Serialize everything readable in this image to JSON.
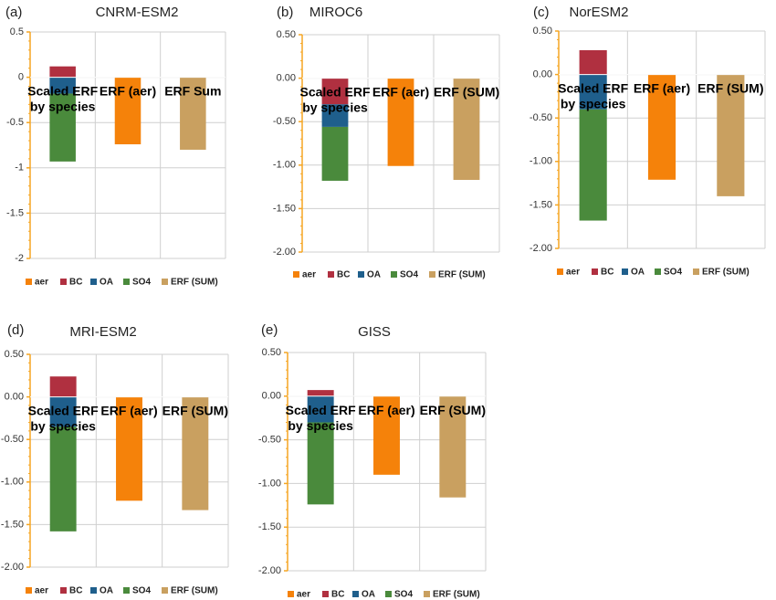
{
  "colors": {
    "aer": "#F5820A",
    "BC": "#B03040",
    "OA": "#1F5F8C",
    "SO4": "#4A8A3C",
    "ERF_SUM": "#C9A060",
    "axis": "#F5A623",
    "grid": "#CFCFCF"
  },
  "chart_data": [
    {
      "type": "bar",
      "panel": "(a)",
      "title": "CNRM-ESM2",
      "categories": [
        "Scaled ERF\nby species",
        "ERF (aer)",
        "ERF Sum"
      ],
      "ylim": [
        -2,
        0.5
      ],
      "yticks": [
        "0.5",
        "0",
        "-0.5",
        "-1",
        "-1.5",
        "-2"
      ],
      "stack": {
        "BC": [
          0,
          0.12
        ],
        "OA": [
          -0.18,
          0
        ],
        "SO4": [
          -0.93,
          -0.18
        ]
      },
      "values": {
        "ERF (aer)": -0.74,
        "ERF Sum": -0.8
      },
      "legend": [
        "aer",
        "BC",
        "OA",
        "SO4",
        "ERF (SUM)"
      ]
    },
    {
      "type": "bar",
      "panel": "(b)",
      "title": "MIROC6",
      "categories": [
        "Scaled ERF\nby species",
        "ERF (aer)",
        "ERF (SUM)"
      ],
      "ylim": [
        -2,
        0.5
      ],
      "yticks": [
        "0.50",
        "0.00",
        "-0.50",
        "-1.00",
        "-1.50",
        "-2.00"
      ],
      "stack": {
        "BC": [
          -0.3,
          0
        ],
        "OA": [
          -0.56,
          -0.3
        ],
        "SO4": [
          -1.18,
          -0.56
        ]
      },
      "values": {
        "ERF (aer)": -1.01,
        "ERF (SUM)": -1.17
      },
      "legend": [
        "aer",
        "BC",
        "OA",
        "SO4",
        "ERF (SUM)"
      ]
    },
    {
      "type": "bar",
      "panel": "(c)",
      "title": "NorESM2",
      "categories": [
        "Scaled ERF\nby species",
        "ERF (aer)",
        "ERF (SUM)"
      ],
      "ylim": [
        -2,
        0.5
      ],
      "yticks": [
        "0.50",
        "0.00",
        "-0.50",
        "-1.00",
        "-1.50",
        "-2.00"
      ],
      "stack": {
        "BC": [
          0,
          0.28
        ],
        "OA": [
          -0.4,
          0
        ],
        "SO4": [
          -1.68,
          -0.4
        ]
      },
      "values": {
        "ERF (aer)": -1.21,
        "ERF (SUM)": -1.4
      },
      "legend": [
        "aer",
        "BC",
        "OA",
        "SO4",
        "ERF (SUM)"
      ]
    },
    {
      "type": "bar",
      "panel": "(d)",
      "title": "MRI-ESM2",
      "categories": [
        "Scaled ERF\nby species",
        "ERF (aer)",
        "ERF (SUM)"
      ],
      "ylim": [
        -2,
        0.5
      ],
      "yticks": [
        "0.50",
        "0.00",
        "-0.50",
        "-1.00",
        "-1.50",
        "-2.00"
      ],
      "stack": {
        "BC": [
          0,
          0.24
        ],
        "OA": [
          -0.35,
          0
        ],
        "SO4": [
          -1.58,
          -0.35
        ]
      },
      "values": {
        "ERF (aer)": -1.22,
        "ERF (SUM)": -1.33
      },
      "legend": [
        "aer",
        "BC",
        "OA",
        "SO4",
        "ERF (SUM)"
      ]
    },
    {
      "type": "bar",
      "panel": "(e)",
      "title": "GISS",
      "categories": [
        "Scaled ERF\nby species",
        "ERF (aer)",
        "ERF (SUM)"
      ],
      "ylim": [
        -2,
        0.5
      ],
      "yticks": [
        "0.50",
        "0.00",
        "-0.50",
        "-1.00",
        "-1.50",
        "-2.00"
      ],
      "stack": {
        "BC": [
          0,
          0.07
        ],
        "OA": [
          -0.3,
          0
        ],
        "SO4": [
          -1.24,
          -0.3
        ]
      },
      "values": {
        "ERF (aer)": -0.9,
        "ERF (SUM)": -1.16
      },
      "legend": [
        "aer",
        "BC",
        "OA",
        "SO4",
        "ERF (SUM)"
      ]
    }
  ]
}
